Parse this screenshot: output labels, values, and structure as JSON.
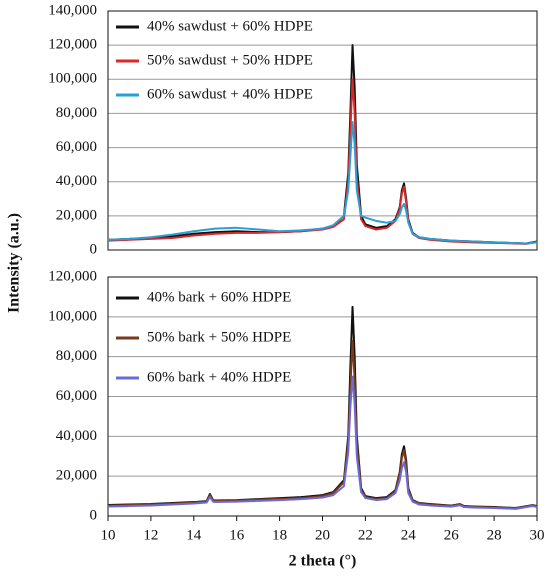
{
  "chart_data": [
    {
      "type": "line",
      "x": [
        10,
        11,
        12,
        13,
        14,
        15,
        16,
        17,
        18,
        19,
        20,
        20.5,
        21,
        21.2,
        21.3,
        21.4,
        21.5,
        21.6,
        21.8,
        22,
        22.5,
        23,
        23.4,
        23.6,
        23.7,
        23.8,
        23.9,
        24,
        24.2,
        24.5,
        25,
        26,
        27,
        28,
        29,
        29.5,
        30
      ],
      "series": [
        {
          "name": "40% sawdust + 60% HDPE",
          "color": "#111111",
          "values": [
            6000,
            6500,
            7000,
            8000,
            9500,
            10500,
            11000,
            10500,
            10500,
            11000,
            12500,
            14000,
            20000,
            45000,
            80000,
            120000,
            95000,
            50000,
            20000,
            15000,
            13000,
            14000,
            18000,
            25000,
            35000,
            39000,
            30000,
            18000,
            10000,
            7500,
            6500,
            5500,
            5000,
            4500,
            4000,
            3800,
            5000
          ]
        },
        {
          "name": "50% sawdust + 50% HDPE",
          "color": "#d42a2a",
          "values": [
            5500,
            6000,
            6500,
            7000,
            8500,
            9500,
            10000,
            10000,
            10500,
            11000,
            12000,
            13500,
            18000,
            40000,
            70000,
            100000,
            80000,
            42000,
            18000,
            14000,
            12000,
            13000,
            17000,
            24000,
            33000,
            37000,
            28000,
            17000,
            9500,
            7000,
            6000,
            5000,
            4500,
            4200,
            3800,
            3600,
            4800
          ]
        },
        {
          "name": "60% sawdust + 40% HDPE",
          "color": "#2a9fd6",
          "values": [
            6000,
            6500,
            7500,
            9000,
            11000,
            12500,
            13000,
            12000,
            11000,
            11500,
            12500,
            14500,
            20000,
            35000,
            55000,
            75000,
            62000,
            35000,
            20000,
            19000,
            17000,
            16000,
            17000,
            21000,
            25000,
            27000,
            23000,
            16000,
            9500,
            7500,
            6500,
            5500,
            5000,
            4500,
            4000,
            3800,
            4500
          ]
        }
      ],
      "xlim": [
        10,
        30
      ],
      "ylim": [
        0,
        140000
      ],
      "yticks": [
        0,
        {
          "value": 20000,
          "label": "20,000"
        },
        {
          "value": 40000,
          "label": "40,000"
        },
        {
          "value": 60000,
          "label": "60,000"
        },
        {
          "value": 80000,
          "label": "80,000"
        },
        {
          "value": 100000,
          "label": "100,000"
        },
        {
          "value": 120000,
          "label": "120,000"
        },
        {
          "value": 140000,
          "label": "140,000"
        }
      ],
      "grid": true,
      "legend": "upper left"
    },
    {
      "type": "line",
      "x": [
        10,
        11,
        12,
        13,
        14,
        14.6,
        14.75,
        14.9,
        15,
        16,
        17,
        18,
        19,
        20,
        20.5,
        21,
        21.2,
        21.3,
        21.4,
        21.5,
        21.6,
        21.8,
        22,
        22.5,
        23,
        23.4,
        23.6,
        23.7,
        23.8,
        23.9,
        24,
        24.2,
        24.5,
        25,
        26,
        26.4,
        26.6,
        27,
        28,
        29,
        29.8,
        30
      ],
      "series": [
        {
          "name": "40% bark + 60% HDPE",
          "color": "#111111",
          "values": [
            5500,
            5800,
            6000,
            6500,
            7000,
            7500,
            11000,
            8000,
            7800,
            8000,
            8500,
            9000,
            9500,
            10500,
            12000,
            18000,
            40000,
            75000,
            105000,
            80000,
            40000,
            14000,
            10000,
            9000,
            9500,
            13000,
            22000,
            31000,
            35000,
            28000,
            14000,
            8000,
            6500,
            6000,
            5200,
            6000,
            5000,
            4800,
            4500,
            4000,
            5500,
            5000
          ]
        },
        {
          "name": "50% bark + 50% HDPE",
          "color": "#7a3b1a",
          "values": [
            5200,
            5500,
            5800,
            6200,
            6800,
            7200,
            10500,
            7800,
            7500,
            7800,
            8200,
            8600,
            9000,
            10000,
            11500,
            17000,
            37000,
            65000,
            88000,
            68000,
            36000,
            13000,
            9500,
            8600,
            9000,
            12500,
            21000,
            29000,
            33000,
            26000,
            13000,
            7800,
            6300,
            5800,
            5000,
            5800,
            4800,
            4600,
            4300,
            3900,
            5300,
            4800
          ]
        },
        {
          "name": "60% bark + 40% HDPE",
          "color": "#6b6bd8",
          "values": [
            4800,
            5000,
            5300,
            5800,
            6300,
            6800,
            9500,
            7200,
            7000,
            7200,
            7600,
            8000,
            8500,
            9300,
            10500,
            15000,
            32000,
            55000,
            70000,
            56000,
            30000,
            12000,
            9000,
            8000,
            8500,
            11500,
            18000,
            24000,
            27000,
            22000,
            11500,
            7200,
            5800,
            5300,
            4700,
            5400,
            4500,
            4300,
            4000,
            3600,
            5000,
            4500
          ]
        }
      ],
      "xlim": [
        10,
        30
      ],
      "xticks": [
        10,
        12,
        14,
        16,
        18,
        20,
        22,
        24,
        26,
        28,
        30
      ],
      "ylim": [
        0,
        120000
      ],
      "yticks": [
        0,
        {
          "value": 20000,
          "label": "20,000"
        },
        {
          "value": 40000,
          "label": "40,000"
        },
        {
          "value": 60000,
          "label": "60,000"
        },
        {
          "value": 80000,
          "label": "80,000"
        },
        {
          "value": 100000,
          "label": "100,000"
        },
        {
          "value": 120000,
          "label": "120,000"
        }
      ],
      "grid": true,
      "legend": "upper left",
      "xlabel": "2 theta (°)",
      "ylabel": "Intensity (a.u.)"
    }
  ]
}
